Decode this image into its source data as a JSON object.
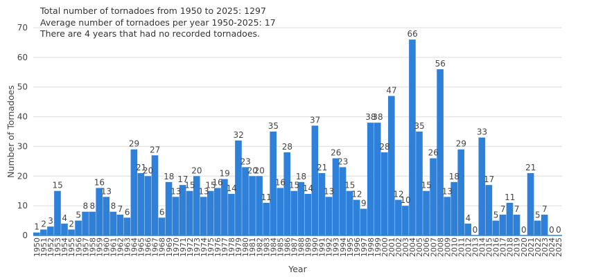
{
  "chart_data": {
    "type": "bar",
    "xlabel": "Year",
    "ylabel": "Number of Tornadoes",
    "ylim": [
      0,
      70
    ],
    "yticks": [
      0,
      10,
      20,
      30,
      40,
      50,
      60,
      70
    ],
    "grid": true,
    "legend": "none",
    "bar_color": "#2f80d9",
    "annotations": [
      "Total number of tornadoes from 1950 to 2025: 1297",
      "Average number of tornadoes per year 1950-2025: 17",
      "There are 4 years that had no recorded tornadoes."
    ],
    "categories": [
      "1950",
      "1951",
      "1952",
      "1953",
      "1954",
      "1955",
      "1956",
      "1957",
      "1958",
      "1959",
      "1960",
      "1961",
      "1962",
      "1963",
      "1964",
      "1965",
      "1966",
      "1967",
      "1968",
      "1969",
      "1970",
      "1971",
      "1972",
      "1973",
      "1974",
      "1975",
      "1976",
      "1977",
      "1978",
      "1979",
      "1980",
      "1981",
      "1982",
      "1983",
      "1984",
      "1985",
      "1986",
      "1987",
      "1988",
      "1989",
      "1990",
      "1991",
      "1992",
      "1993",
      "1994",
      "1995",
      "1996",
      "1997",
      "1998",
      "1999",
      "2000",
      "2001",
      "2002",
      "2003",
      "2004",
      "2005",
      "2006",
      "2007",
      "2008",
      "2009",
      "2010",
      "2011",
      "2012",
      "2013",
      "2014",
      "2015",
      "2016",
      "2017",
      "2018",
      "2019",
      "2020",
      "2021",
      "2022",
      "2023",
      "2024",
      "2025"
    ],
    "values": [
      1,
      2,
      3,
      15,
      4,
      2,
      5,
      8,
      8,
      16,
      13,
      8,
      7,
      6,
      29,
      21,
      20,
      27,
      6,
      18,
      13,
      17,
      15,
      20,
      13,
      15,
      16,
      19,
      14,
      32,
      23,
      20,
      20,
      11,
      35,
      16,
      28,
      15,
      18,
      14,
      37,
      21,
      13,
      26,
      23,
      15,
      12,
      9,
      38,
      38,
      28,
      47,
      12,
      10,
      66,
      35,
      15,
      26,
      56,
      13,
      18,
      29,
      4,
      0,
      33,
      17,
      5,
      7,
      11,
      7,
      0,
      21,
      5,
      7,
      0,
      0
    ]
  }
}
